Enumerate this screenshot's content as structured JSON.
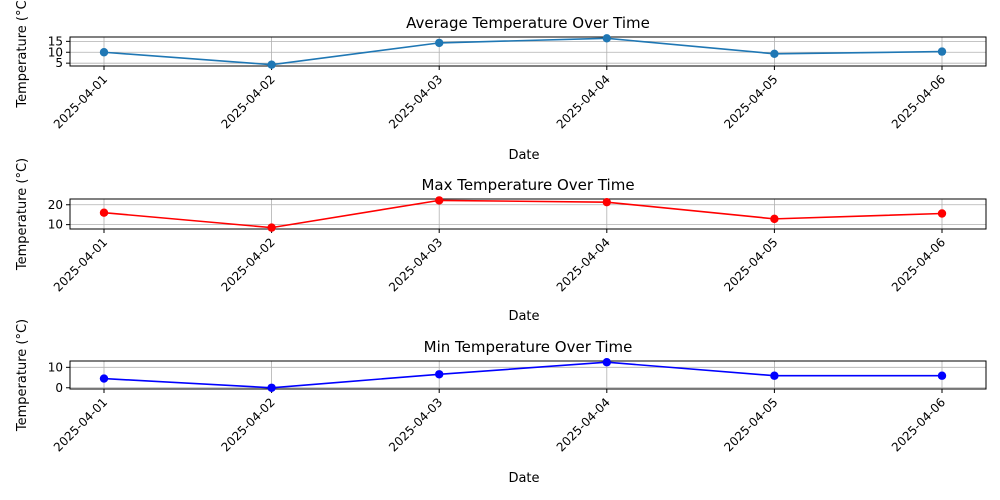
{
  "chart_data": [
    {
      "type": "line",
      "title": "Average Temperature Over Time",
      "xlabel": "Date",
      "ylabel": "Temperature (°C)",
      "categories": [
        "2025-04-01",
        "2025-04-02",
        "2025-04-03",
        "2025-04-04",
        "2025-04-05",
        "2025-04-06"
      ],
      "values": [
        10.0,
        4.3,
        14.3,
        16.4,
        9.3,
        10.3
      ],
      "ylim": [
        3.7,
        17.0
      ],
      "yticks": [
        5,
        10,
        15
      ],
      "color": "#1f77b4",
      "marker": "circle",
      "grid": true
    },
    {
      "type": "line",
      "title": "Max Temperature Over Time",
      "xlabel": "Date",
      "ylabel": "Temperature (°C)",
      "categories": [
        "2025-04-01",
        "2025-04-02",
        "2025-04-03",
        "2025-04-04",
        "2025-04-05",
        "2025-04-06"
      ],
      "values": [
        16.0,
        8.5,
        22.2,
        21.3,
        12.9,
        15.6
      ],
      "ylim": [
        7.8,
        22.9
      ],
      "yticks": [
        10,
        20
      ],
      "color": "#ff0000",
      "marker": "circle",
      "grid": true
    },
    {
      "type": "line",
      "title": "Min Temperature Over Time",
      "xlabel": "Date",
      "ylabel": "Temperature (°C)",
      "categories": [
        "2025-04-01",
        "2025-04-02",
        "2025-04-03",
        "2025-04-04",
        "2025-04-05",
        "2025-04-06"
      ],
      "values": [
        4.5,
        0.0,
        6.6,
        12.5,
        5.9,
        5.9
      ],
      "ylim": [
        -0.6,
        13.1
      ],
      "yticks": [
        0,
        10
      ],
      "color": "#0000ff",
      "marker": "circle",
      "grid": true
    }
  ]
}
